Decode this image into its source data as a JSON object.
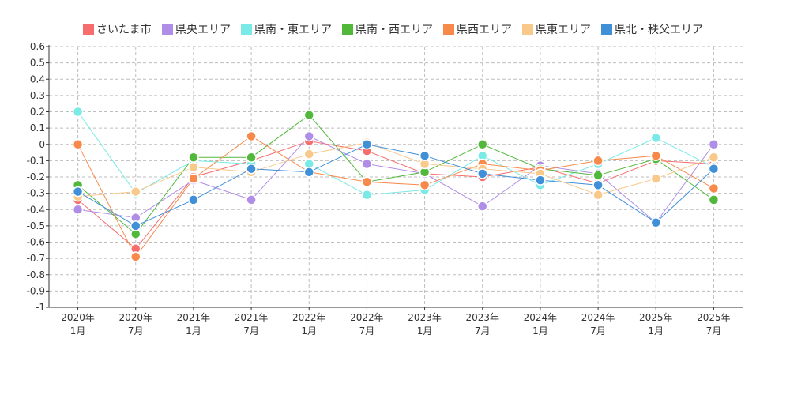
{
  "chart_data": {
    "type": "line",
    "title": "",
    "xlabel": "",
    "ylabel": "",
    "ylim": [
      -1,
      0.6
    ],
    "yticks": [
      "0.6",
      "0.5",
      "0.4",
      "0.3",
      "0.2",
      "0.1",
      "0",
      "-0.1",
      "-0.2",
      "-0.3",
      "-0.4",
      "-0.5",
      "-0.6",
      "-0.7",
      "-0.8",
      "-0.9",
      "-1"
    ],
    "categories": [
      {
        "year": "2020年",
        "month": "1月"
      },
      {
        "year": "2020年",
        "month": "7月"
      },
      {
        "year": "2021年",
        "month": "1月"
      },
      {
        "year": "2021年",
        "month": "7月"
      },
      {
        "year": "2022年",
        "month": "1月"
      },
      {
        "year": "2022年",
        "month": "7月"
      },
      {
        "year": "2023年",
        "month": "1月"
      },
      {
        "year": "2023年",
        "month": "7月"
      },
      {
        "year": "2024年",
        "month": "1月"
      },
      {
        "year": "2024年",
        "month": "7月"
      },
      {
        "year": "2025年",
        "month": "1月"
      },
      {
        "year": "2025年",
        "month": "7月"
      }
    ],
    "grid": true,
    "legend_position": "top",
    "series": [
      {
        "name": "さいたま市",
        "color": "#f76d6d",
        "values": [
          -0.34,
          -0.64,
          -0.2,
          -0.1,
          0.02,
          -0.04,
          -0.18,
          -0.2,
          -0.14,
          -0.24,
          -0.1,
          -0.12
        ]
      },
      {
        "name": "県央エリア",
        "color": "#b08ee8",
        "values": [
          -0.4,
          -0.45,
          -0.22,
          -0.34,
          0.05,
          -0.12,
          -0.18,
          -0.38,
          -0.13,
          -0.18,
          -0.48,
          0.0
        ]
      },
      {
        "name": "県南・東エリア",
        "color": "#7aeae6",
        "values": [
          0.2,
          -0.3,
          -0.1,
          -0.12,
          -0.12,
          -0.31,
          -0.28,
          -0.07,
          -0.25,
          -0.12,
          0.04,
          -0.14
        ]
      },
      {
        "name": "県南・西エリア",
        "color": "#52b83c",
        "values": [
          -0.25,
          -0.55,
          -0.08,
          -0.08,
          0.18,
          -0.23,
          -0.17,
          0.0,
          -0.15,
          -0.19,
          -0.09,
          -0.34
        ]
      },
      {
        "name": "県西エリア",
        "color": "#f7894a",
        "values": [
          0.0,
          -0.69,
          -0.21,
          0.05,
          -0.17,
          -0.23,
          -0.25,
          -0.12,
          -0.16,
          -0.1,
          -0.07,
          -0.27
        ]
      },
      {
        "name": "県東エリア",
        "color": "#f9c98c",
        "values": [
          -0.32,
          -0.29,
          -0.14,
          -0.17,
          -0.06,
          0.01,
          -0.12,
          -0.15,
          -0.18,
          -0.31,
          -0.21,
          -0.08
        ]
      },
      {
        "name": "県北・秩父エリア",
        "color": "#4090d8",
        "values": [
          -0.29,
          -0.5,
          -0.34,
          -0.15,
          -0.17,
          0.0,
          -0.07,
          -0.18,
          -0.22,
          -0.25,
          -0.48,
          -0.15
        ]
      }
    ]
  }
}
